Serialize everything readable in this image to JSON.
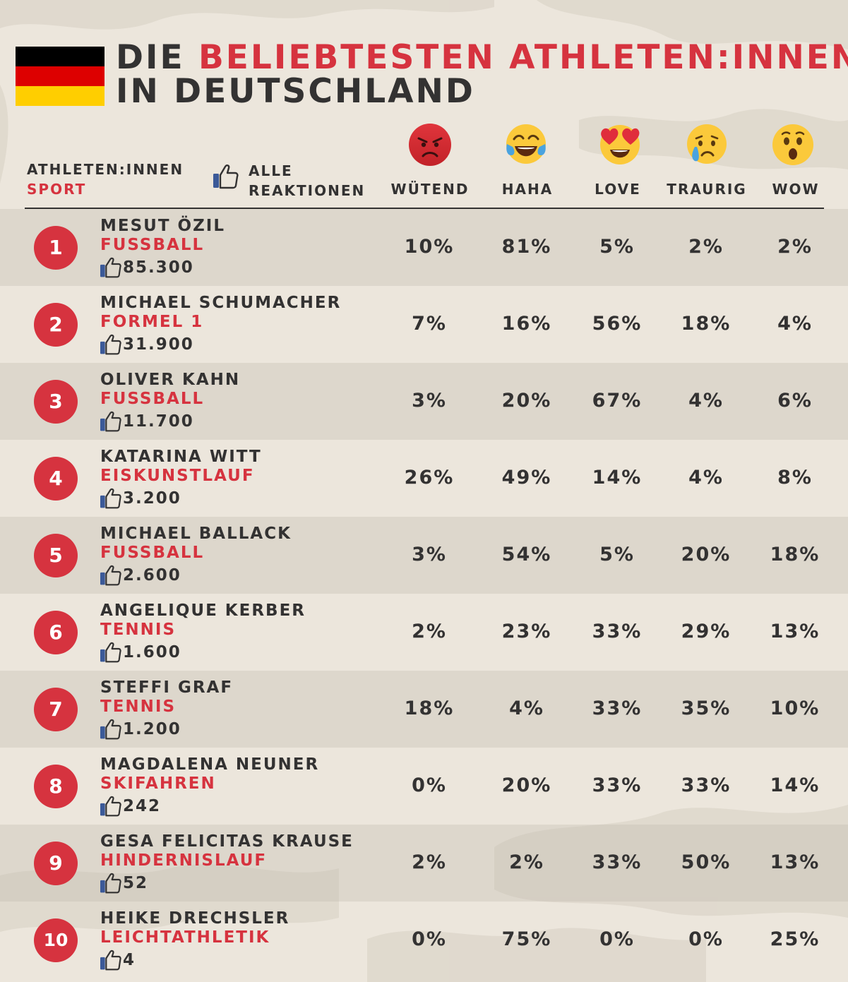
{
  "title": {
    "part1": "DIE ",
    "part2": "BELIEBTESTEN ATHLETEN:INNEN",
    "line2": "IN DEUTSCHLAND"
  },
  "flag_colors": [
    "#000000",
    "#dd0000",
    "#ffce00"
  ],
  "colors": {
    "accent": "#d6333f",
    "text": "#333232",
    "facebook_blue": "#3b5998",
    "background": "#ece6dc"
  },
  "header": {
    "athletes_label": "ATHLETEN:INNEN",
    "sport_label": "SPORT",
    "all_reactions_line1": "ALLE",
    "all_reactions_line2": "REAKTIONEN",
    "like_icon": "thumbs-up-icon"
  },
  "reactions": [
    {
      "key": "angry",
      "label": "WÜTEND",
      "icon": "angry-face-icon"
    },
    {
      "key": "haha",
      "label": "HAHA",
      "icon": "tears-of-joy-icon"
    },
    {
      "key": "love",
      "label": "LOVE",
      "icon": "heart-eyes-icon"
    },
    {
      "key": "sad",
      "label": "TRAURIG",
      "icon": "crying-face-icon"
    },
    {
      "key": "wow",
      "label": "WOW",
      "icon": "astonished-face-icon"
    }
  ],
  "athletes": [
    {
      "rank": "1",
      "name": "MESUT ÖZIL",
      "sport": "FUßBALL",
      "reactions_total": "85.300",
      "angry": "10%",
      "haha": "81%",
      "love": "5%",
      "sad": "2%",
      "wow": "2%"
    },
    {
      "rank": "2",
      "name": "MICHAEL SCHUMACHER",
      "sport": "FORMEL 1",
      "reactions_total": "31.900",
      "angry": "7%",
      "haha": "16%",
      "love": "56%",
      "sad": "18%",
      "wow": "4%"
    },
    {
      "rank": "3",
      "name": "OLIVER KAHN",
      "sport": "FUßBALL",
      "reactions_total": "11.700",
      "angry": "3%",
      "haha": "20%",
      "love": "67%",
      "sad": "4%",
      "wow": "6%"
    },
    {
      "rank": "4",
      "name": "KATARINA WITT",
      "sport": "EISKUNSTLAUF",
      "reactions_total": "3.200",
      "angry": "26%",
      "haha": "49%",
      "love": "14%",
      "sad": "4%",
      "wow": "8%"
    },
    {
      "rank": "5",
      "name": "MICHAEL BALLACK",
      "sport": "FUßBALL",
      "reactions_total": "2.600",
      "angry": "3%",
      "haha": "54%",
      "love": "5%",
      "sad": "20%",
      "wow": "18%"
    },
    {
      "rank": "6",
      "name": "ANGELIQUE KERBER",
      "sport": "TENNIS",
      "reactions_total": "1.600",
      "angry": "2%",
      "haha": "23%",
      "love": "33%",
      "sad": "29%",
      "wow": "13%"
    },
    {
      "rank": "7",
      "name": "STEFFI GRAF",
      "sport": "TENNIS",
      "reactions_total": "1.200",
      "angry": "18%",
      "haha": "4%",
      "love": "33%",
      "sad": "35%",
      "wow": "10%"
    },
    {
      "rank": "8",
      "name": "MAGDALENA NEUNER",
      "sport": "SKIFAHREN",
      "reactions_total": "242",
      "angry": "0%",
      "haha": "20%",
      "love": "33%",
      "sad": "33%",
      "wow": "14%"
    },
    {
      "rank": "9",
      "name": "GESA FELICITAS KRAUSE",
      "sport": "HINDERNISLAUF",
      "reactions_total": "52",
      "angry": "2%",
      "haha": "2%",
      "love": "33%",
      "sad": "50%",
      "wow": "13%"
    },
    {
      "rank": "10",
      "name": "HEIKE DRECHSLER",
      "sport": "LEICHTATHLETIK",
      "reactions_total": "4",
      "angry": "0%",
      "haha": "75%",
      "love": "0%",
      "sad": "0%",
      "wow": "25%"
    }
  ]
}
